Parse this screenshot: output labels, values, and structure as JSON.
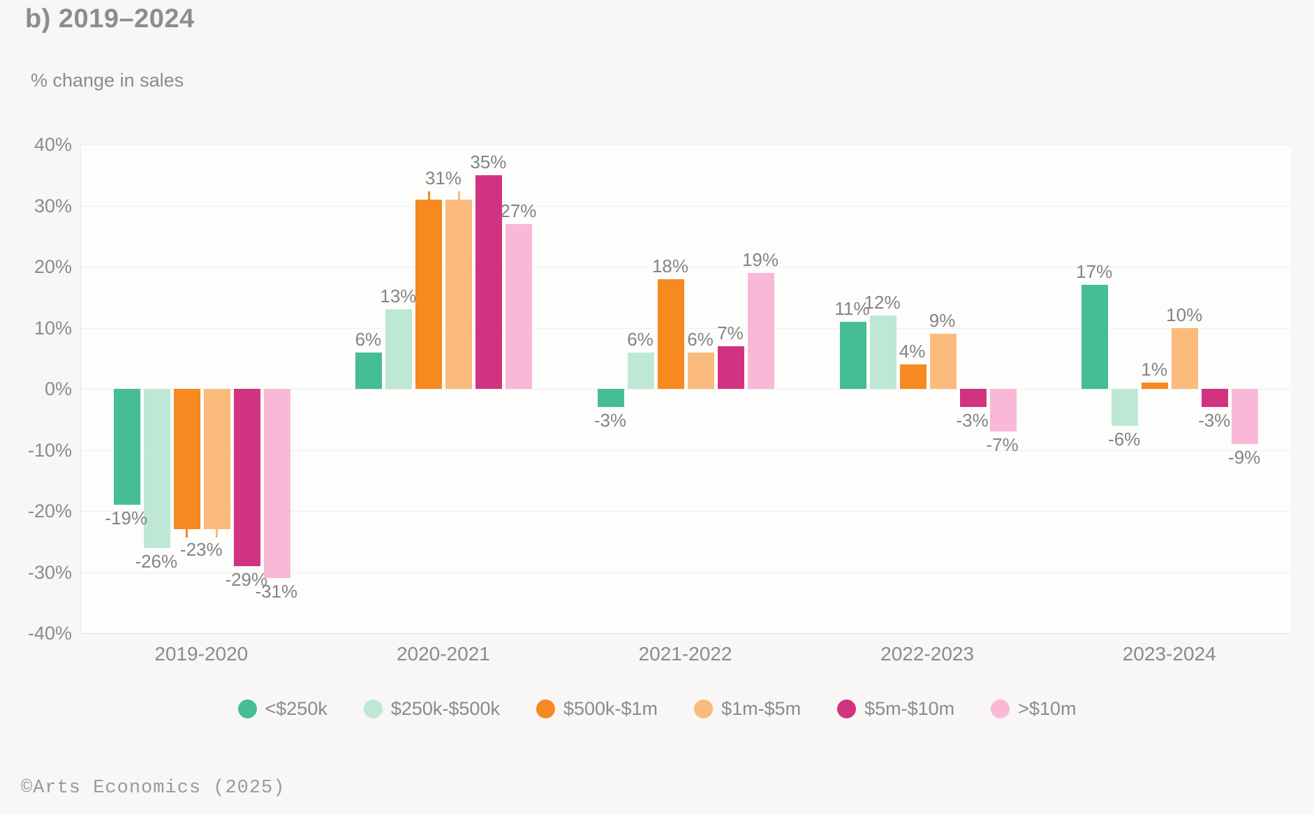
{
  "title": "b) 2019–2024",
  "axis_title": "% change in sales",
  "footer": "©Arts Economics (2025)",
  "chart_data": {
    "type": "bar",
    "title": "b) 2019–2024",
    "ylabel": "% change in sales",
    "ylim": [
      -40,
      40
    ],
    "ytick_step": 10,
    "ytick_labels": [
      "40%",
      "30%",
      "20%",
      "10%",
      "0%",
      "-10%",
      "-20%",
      "-30%",
      "-40%"
    ],
    "grid": true,
    "legend_position": "bottom",
    "categories": [
      "2019-2020",
      "2020-2021",
      "2021-2022",
      "2022-2023",
      "2023-2024"
    ],
    "series": [
      {
        "name": "<$250k",
        "color": "#45BE93",
        "values": [
          -19,
          6,
          -3,
          11,
          17
        ],
        "labels": [
          "-19%",
          "6%",
          "-3%",
          "11%",
          "17%"
        ]
      },
      {
        "name": "$250k-$500k",
        "color": "#BEE8D5",
        "values": [
          -26,
          13,
          6,
          12,
          -6
        ],
        "labels": [
          "-26%",
          "13%",
          "6%",
          "12%",
          "-6%"
        ]
      },
      {
        "name": "$500k-$1m",
        "color": "#F6891F",
        "values": [
          -23,
          31,
          18,
          4,
          1
        ],
        "labels": [
          null,
          null,
          "18%",
          "4%",
          "1%"
        ]
      },
      {
        "name": "$1m-$5m",
        "color": "#FABB7C",
        "values": [
          -23,
          31,
          6,
          9,
          10
        ],
        "labels": [
          null,
          null,
          "6%",
          "9%",
          "10%"
        ]
      },
      {
        "name": "$5m-$10m",
        "color": "#D13380",
        "values": [
          -29,
          35,
          7,
          -3,
          -3
        ],
        "labels": [
          "-29%",
          "35%",
          "7%",
          "-3%",
          "-3%"
        ]
      },
      {
        "name": ">$10m",
        "color": "#F9B9D6",
        "values": [
          -31,
          27,
          19,
          -7,
          -9
        ],
        "labels": [
          "-31%",
          "27%",
          "19%",
          "-7%",
          "-9%"
        ]
      }
    ],
    "shared_labels": [
      {
        "category_index": 0,
        "series_indexes": [
          2,
          3
        ],
        "text": "-23%"
      },
      {
        "category_index": 1,
        "series_indexes": [
          2,
          3
        ],
        "text": "31%"
      }
    ]
  }
}
